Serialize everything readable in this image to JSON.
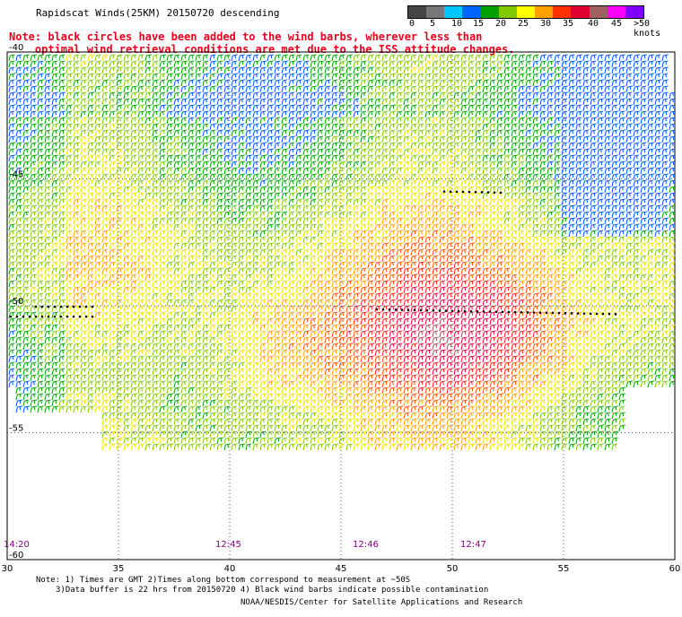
{
  "title": "Rapidscat Winds(25KM) 20150720 descending",
  "note_lines": [
    "Note: black circles have been added to the wind barbs, wherever less than",
    "    optimal wind retrieval conditions are met due to the ISS attitude changes."
  ],
  "colorbar": {
    "labels": [
      "0",
      "5",
      "10",
      "15",
      "20",
      "25",
      "30",
      "35",
      "40",
      "45",
      ">50 knots"
    ],
    "colors": [
      "#444444",
      "#777777",
      "#00c8ff",
      "#0064ff",
      "#00a000",
      "#80c800",
      "#ffff00",
      "#ffa000",
      "#ff3000",
      "#e00030",
      "#a06060",
      "#ff00ff",
      "#8000ff"
    ]
  },
  "axes": {
    "lon_ticks": [
      "30",
      "35",
      "40",
      "45",
      "50",
      "55",
      "60"
    ],
    "lat_ticks": [
      "-40",
      "-45",
      "-50",
      "-55",
      "-60"
    ]
  },
  "pass_times": [
    "14:20",
    "12:45",
    "12:46",
    "12:47"
  ],
  "footer": {
    "line1": "Note: 1) Times are GMT 2)Times along bottom correspond to measurement at ~50S",
    "line2": "3)Data buffer is 22 hrs from 20150720 4) Black wind barbs indicate possible contamination",
    "credit": "NOAA/NESDIS/Center for Satellite Applications and Research"
  }
}
